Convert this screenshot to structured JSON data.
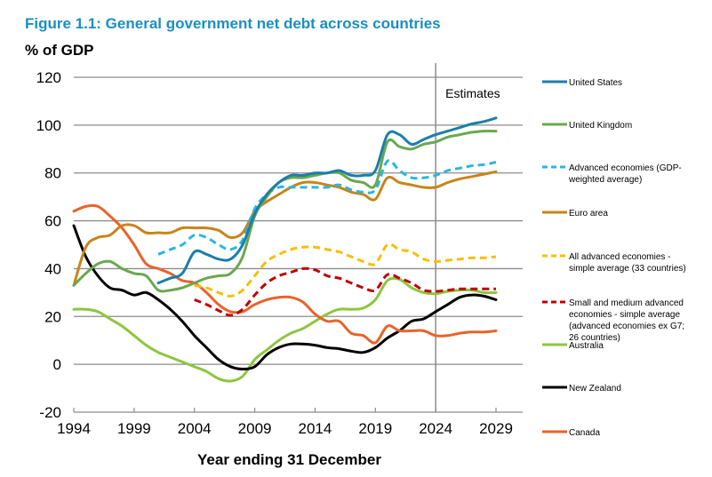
{
  "chart_data": {
    "type": "line",
    "title": "Figure 1.1: General government net debt across countries",
    "ylabel": "% of GDP",
    "xlabel": "Year ending 31 December",
    "ylim": [
      -20,
      120
    ],
    "xlim": [
      1994,
      2029
    ],
    "yticks": [
      -20,
      0,
      20,
      40,
      60,
      80,
      100,
      120
    ],
    "xticks": [
      1994,
      1999,
      2004,
      2009,
      2014,
      2019,
      2024,
      2029
    ],
    "grid": "horizontal",
    "legend_position": "right",
    "annotation": {
      "text": "Estimates",
      "x": 2024
    },
    "series": [
      {
        "name": "United States",
        "color": "#1b7fa8",
        "dash": false,
        "start": 2001,
        "values": [
          34,
          36,
          38,
          47,
          46,
          44,
          44,
          50,
          63,
          71,
          76,
          79,
          79,
          80,
          80,
          81,
          79,
          79,
          81,
          96,
          96,
          92,
          94,
          96,
          97.5,
          99,
          100.5,
          101.5,
          103
        ]
      },
      {
        "name": "United Kingdom",
        "color": "#6aa84f",
        "dash": false,
        "start": 1994,
        "values": [
          33,
          38,
          42,
          43,
          40,
          38,
          37,
          31,
          31,
          32,
          34,
          36,
          37,
          38,
          45,
          62,
          70,
          76,
          78,
          78,
          79,
          80,
          80,
          77,
          76,
          75,
          93,
          91,
          90,
          92,
          93,
          95,
          96,
          97,
          97.5,
          97.5
        ]
      },
      {
        "name": "Advanced economies (GDP-weighted average)",
        "color": "#29b6e3",
        "dash": true,
        "start": 2001,
        "values": [
          46,
          48,
          50,
          54,
          53,
          50,
          48,
          52,
          65,
          71,
          74,
          74,
          74,
          74,
          74,
          75,
          73,
          72,
          73,
          85,
          81,
          78,
          78,
          79,
          81,
          82,
          83,
          83.5,
          84.5
        ]
      },
      {
        "name": "Euro area",
        "color": "#c8841a",
        "dash": false,
        "start": 1994,
        "values": [
          33,
          49,
          53,
          54,
          58,
          58,
          55,
          55,
          55,
          57,
          57,
          57,
          56,
          53,
          55,
          64,
          68,
          71,
          74,
          76,
          76,
          75,
          74,
          72,
          71,
          69,
          78,
          76,
          75,
          74,
          74,
          76,
          77.5,
          78.5,
          79.5,
          80.5
        ]
      },
      {
        "name": "All advanced economies - simple average (33 countries)",
        "color": "#f5c000",
        "dash": true,
        "start": 2004,
        "values": [
          33,
          32,
          30,
          28.5,
          31,
          37,
          43,
          46,
          48,
          49,
          49,
          48,
          47,
          45,
          43,
          42,
          50,
          48,
          47,
          44,
          43,
          43.5,
          44,
          44.5,
          44.5,
          45
        ]
      },
      {
        "name": "Small and medium advanced economies - simple average (advanced economies ex G7; 26 countries)",
        "color": "#c00000",
        "dash": true,
        "start": 2004,
        "values": [
          27,
          25,
          22.5,
          20.5,
          23,
          29,
          34,
          37,
          38.5,
          40,
          39.5,
          37,
          36,
          34,
          32,
          31,
          37.5,
          36,
          34,
          31,
          30.5,
          31,
          31.5,
          31.5,
          31.5,
          31.5
        ]
      },
      {
        "name": "Australia",
        "color": "#8cc63f",
        "dash": false,
        "start": 1994,
        "values": [
          23,
          23,
          22,
          19,
          16,
          12,
          8,
          5,
          3,
          1,
          -1,
          -3,
          -6,
          -7,
          -5,
          2,
          6,
          10,
          13,
          15,
          18,
          21,
          23,
          23,
          23.5,
          27,
          35,
          35.5,
          32,
          30,
          29.5,
          30.5,
          31,
          31,
          30,
          30
        ]
      },
      {
        "name": "New Zealand",
        "color": "#000000",
        "dash": false,
        "start": 1994,
        "values": [
          58,
          45,
          37,
          32,
          31,
          29,
          30,
          27,
          23,
          18,
          12,
          7,
          2,
          -1,
          -2,
          -1,
          4,
          7,
          8.5,
          8.5,
          8,
          7,
          6.5,
          5.5,
          5,
          7,
          11,
          14,
          18,
          19,
          22,
          25,
          28,
          29,
          28.5,
          27
        ]
      },
      {
        "name": "Canada",
        "color": "#e8632a",
        "dash": false,
        "start": 1994,
        "values": [
          64,
          66,
          66,
          62,
          57,
          50,
          42,
          40,
          38,
          35,
          34,
          30,
          25,
          22,
          22,
          25,
          27,
          28,
          28,
          26,
          21,
          18,
          18,
          13,
          12,
          9,
          16,
          14,
          14,
          14,
          12,
          12,
          13,
          13.5,
          13.5,
          14
        ]
      }
    ],
    "legend": [
      {
        "label_lines": [
          "United States"
        ]
      },
      {
        "label_lines": [
          "United Kingdom"
        ]
      },
      {
        "label_lines": [
          "Advanced economies (GDP-",
          "weighted average)"
        ]
      },
      {
        "label_lines": [
          "Euro area"
        ]
      },
      {
        "label_lines": [
          "All advanced economies -",
          "simple average (33 countries)"
        ]
      },
      {
        "label_lines": [
          "Small and medium advanced",
          "economies - simple average",
          "(advanced economies ex G7;",
          "26 countries)"
        ]
      },
      {
        "label_lines": [
          "Australia"
        ]
      },
      {
        "label_lines": [
          "New Zealand"
        ]
      },
      {
        "label_lines": [
          "Canada"
        ]
      }
    ]
  }
}
